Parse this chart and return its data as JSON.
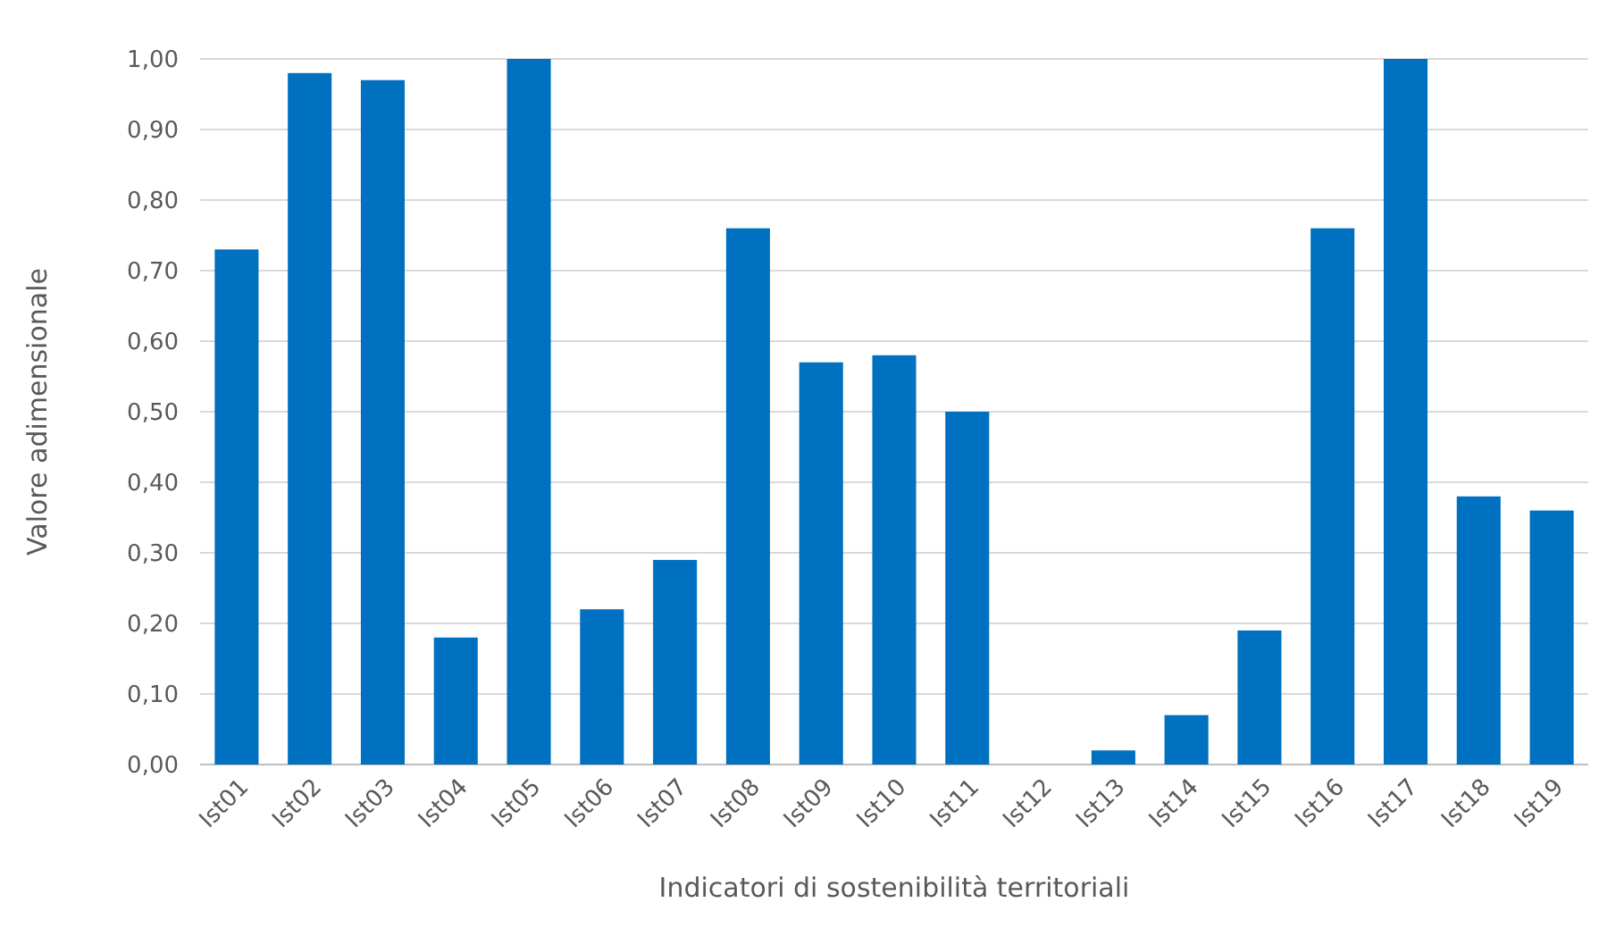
{
  "chart_data": {
    "type": "bar",
    "xlabel": "Indicatori di sostenibilità territoriali",
    "ylabel": "Valore adimensionale",
    "categories": [
      "Ist01",
      "Ist02",
      "Ist03",
      "Ist04",
      "Ist05",
      "Ist06",
      "Ist07",
      "Ist08",
      "Ist09",
      "Ist10",
      "Ist11",
      "Ist12",
      "Ist13",
      "Ist14",
      "Ist15",
      "Ist16",
      "Ist17",
      "Ist18",
      "Ist19"
    ],
    "values": [
      0.73,
      0.98,
      0.97,
      0.18,
      1.0,
      0.22,
      0.29,
      0.76,
      0.57,
      0.58,
      0.5,
      0.0,
      0.02,
      0.07,
      0.19,
      0.76,
      1.0,
      0.38,
      0.36
    ],
    "color": "#0070c0",
    "ylim": [
      0,
      1
    ],
    "yticks": [
      {
        "value": 0,
        "label": "0,00"
      },
      {
        "value": 0.1,
        "label": "0,10"
      },
      {
        "value": 0.2,
        "label": "0,20"
      },
      {
        "value": 0.3,
        "label": "0,30"
      },
      {
        "value": 0.4,
        "label": "0,40"
      },
      {
        "value": 0.5,
        "label": "0,50"
      },
      {
        "value": 0.6,
        "label": "0,60"
      },
      {
        "value": 0.7,
        "label": "0,70"
      },
      {
        "value": 0.8,
        "label": "0,80"
      },
      {
        "value": 0.9,
        "label": "0,90"
      },
      {
        "value": 1,
        "label": "1,00"
      }
    ],
    "grid": "y"
  }
}
